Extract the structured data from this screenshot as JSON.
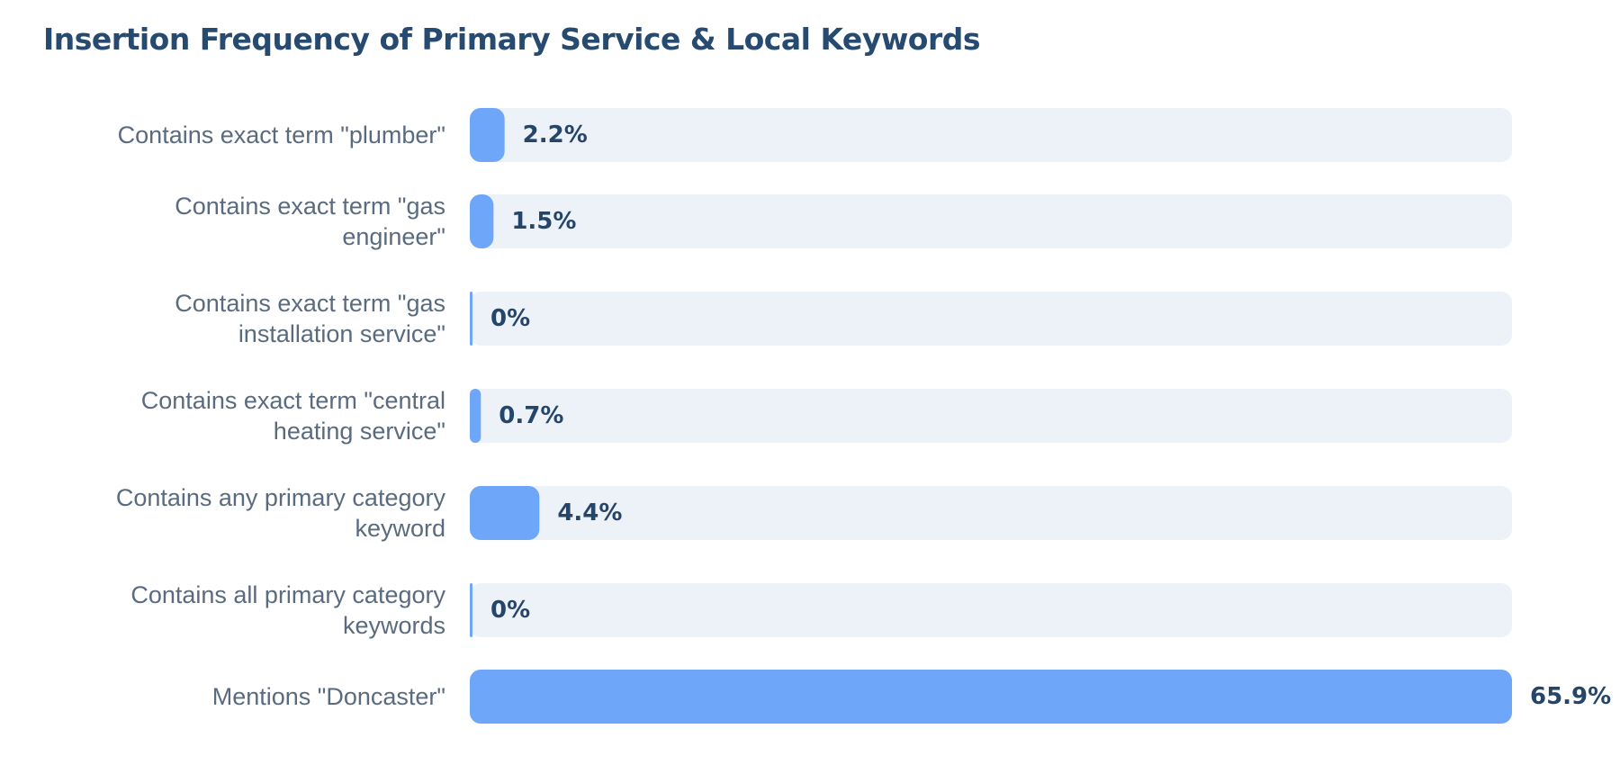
{
  "chart_data": {
    "type": "bar",
    "orientation": "horizontal",
    "title": "Insertion Frequency of Primary Service & Local Keywords",
    "categories": [
      "Contains exact term \"plumber\"",
      "Contains exact term \"gas engineer\"",
      "Contains exact term \"gas installation service\"",
      "Contains exact term \"central heating service\"",
      "Contains any primary category keyword",
      "Contains all primary category keywords",
      "Mentions \"Doncaster\""
    ],
    "category_lines": [
      [
        "Contains exact term \"plumber\""
      ],
      [
        "Contains exact term \"gas",
        "engineer\""
      ],
      [
        "Contains exact term \"gas",
        "installation service\""
      ],
      [
        "Contains exact term \"central",
        "heating service\""
      ],
      [
        "Contains any primary category",
        "keyword"
      ],
      [
        "Contains all primary category",
        "keywords"
      ],
      [
        "Mentions \"Doncaster\""
      ]
    ],
    "values": [
      2.2,
      1.5,
      0,
      0.7,
      4.4,
      0,
      65.9
    ],
    "value_labels": [
      "2.2%",
      "1.5%",
      "0%",
      "0.7%",
      "4.4%",
      "0%",
      "65.9%"
    ],
    "xlim": [
      0,
      65.9
    ],
    "unit": "%",
    "grid": false,
    "colors": {
      "bar": "#6ea7fa",
      "track": "#edf2f9",
      "title": "#274a70",
      "category_label": "#5b6b7f",
      "value_label": "#25456a"
    }
  }
}
